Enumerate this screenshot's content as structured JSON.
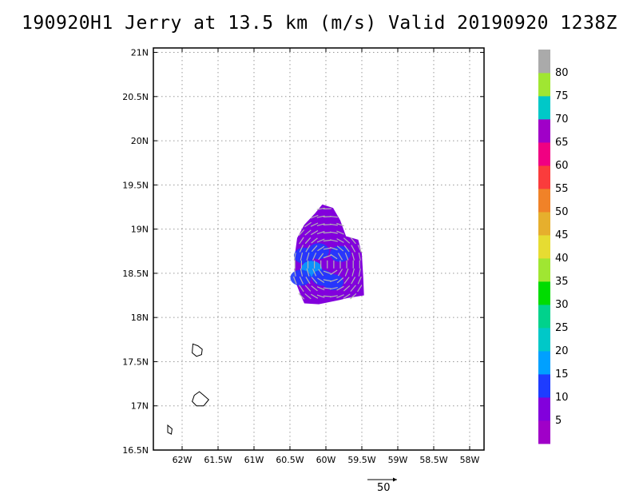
{
  "title": "190920H1 Jerry at 13.5 km (m/s) Valid 20190920 1238Z",
  "map": {
    "lon_min": -62.4,
    "lon_max": -57.8,
    "lat_min": 16.5,
    "lat_max": 21.05,
    "grid": "dotted",
    "lon_ticks": [
      {
        "value": -62.0,
        "label": "62W"
      },
      {
        "value": -61.5,
        "label": "61.5W"
      },
      {
        "value": -61.0,
        "label": "61W"
      },
      {
        "value": -60.5,
        "label": "60.5W"
      },
      {
        "value": -60.0,
        "label": "60W"
      },
      {
        "value": -59.5,
        "label": "59.5W"
      },
      {
        "value": -59.0,
        "label": "59W"
      },
      {
        "value": -58.5,
        "label": "58.5W"
      },
      {
        "value": -58.0,
        "label": "58W"
      }
    ],
    "lat_ticks": [
      {
        "value": 21.0,
        "label": "21N"
      },
      {
        "value": 20.5,
        "label": "20.5N"
      },
      {
        "value": 20.0,
        "label": "20N"
      },
      {
        "value": 19.5,
        "label": "19.5N"
      },
      {
        "value": 19.0,
        "label": "19N"
      },
      {
        "value": 18.5,
        "label": "18.5N"
      },
      {
        "value": 18.0,
        "label": "18N"
      },
      {
        "value": 17.5,
        "label": "17.5N"
      },
      {
        "value": 17.0,
        "label": "17N"
      },
      {
        "value": 16.5,
        "label": "16.5N"
      }
    ],
    "islands": [
      {
        "name": "Antigua",
        "points": [
          [
            -61.85,
            17.7
          ],
          [
            -61.78,
            17.68
          ],
          [
            -61.72,
            17.64
          ],
          [
            -61.73,
            17.58
          ],
          [
            -61.8,
            17.56
          ],
          [
            -61.86,
            17.6
          ],
          [
            -61.85,
            17.7
          ]
        ]
      },
      {
        "name": "Guadeloupe",
        "points": [
          [
            -61.83,
            17.12
          ],
          [
            -61.76,
            17.16
          ],
          [
            -61.7,
            17.12
          ],
          [
            -61.63,
            17.07
          ],
          [
            -61.7,
            17.0
          ],
          [
            -61.8,
            17.0
          ],
          [
            -61.86,
            17.05
          ],
          [
            -61.83,
            17.12
          ]
        ]
      },
      {
        "name": "Dominica",
        "points": [
          [
            -62.2,
            16.78
          ],
          [
            -62.14,
            16.74
          ],
          [
            -62.15,
            16.68
          ],
          [
            -62.2,
            16.7
          ],
          [
            -62.2,
            16.78
          ]
        ]
      }
    ]
  },
  "chart_data": {
    "type": "heatmap",
    "variable": "wind speed at 13.5 km",
    "units": "m/s",
    "colorbar": {
      "labels": [
        "5",
        "10",
        "15",
        "20",
        "25",
        "30",
        "35",
        "40",
        "45",
        "50",
        "55",
        "60",
        "65",
        "70",
        "75",
        "80"
      ],
      "colors": [
        "#a000c8",
        "#8200dc",
        "#1e3cff",
        "#00a0ff",
        "#00c8c8",
        "#00d28c",
        "#00dc00",
        "#a0e632",
        "#e6dc32",
        "#e6af2d",
        "#f08228",
        "#fa3c3c",
        "#f00082",
        "#a000c8",
        "#00c8c8",
        "#a0e632",
        "#aaaaaa"
      ]
    },
    "data_region": {
      "outline": [
        [
          -60.4,
          18.9
        ],
        [
          -60.3,
          19.05
        ],
        [
          -60.15,
          19.18
        ],
        [
          -60.05,
          19.28
        ],
        [
          -59.9,
          19.24
        ],
        [
          -59.8,
          19.1
        ],
        [
          -59.72,
          18.92
        ],
        [
          -59.55,
          18.88
        ],
        [
          -59.5,
          18.72
        ],
        [
          -59.48,
          18.45
        ],
        [
          -59.47,
          18.25
        ],
        [
          -59.7,
          18.22
        ],
        [
          -59.8,
          18.2
        ],
        [
          -60.1,
          18.15
        ],
        [
          -60.3,
          18.16
        ],
        [
          -60.35,
          18.25
        ],
        [
          -60.43,
          18.42
        ],
        [
          -60.43,
          18.72
        ],
        [
          -60.4,
          18.9
        ]
      ],
      "core_speed_ms": 5,
      "max_speed_ms": 15,
      "faster_cells": [
        {
          "lon": -60.3,
          "lat": 18.7,
          "speed": 12
        },
        {
          "lon": -60.2,
          "lat": 18.55,
          "speed": 15
        },
        {
          "lon": -60.1,
          "lat": 18.75,
          "speed": 12
        },
        {
          "lon": -60.05,
          "lat": 18.45,
          "speed": 12
        },
        {
          "lon": -59.8,
          "lat": 18.72,
          "speed": 12
        },
        {
          "lon": -59.9,
          "lat": 18.4,
          "speed": 10
        },
        {
          "lon": -60.35,
          "lat": 18.45,
          "speed": 10
        }
      ]
    },
    "reference_vector": {
      "value": 50,
      "label": "50"
    }
  }
}
